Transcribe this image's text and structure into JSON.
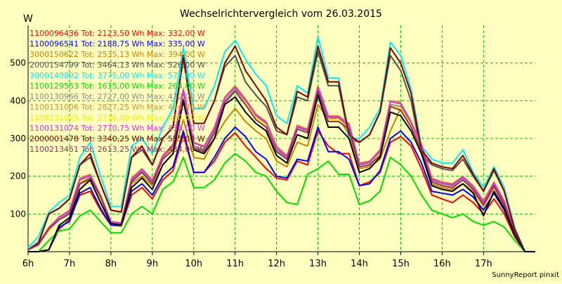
{
  "chart_data": {
    "type": "line",
    "title": "Wechselrichtervergleich vom 26.03.2015",
    "ylabel": "W",
    "xlabel": "",
    "footer": "SunnyReport pinxit",
    "ylim": [
      0,
      600
    ],
    "y_ticks": [
      100,
      200,
      300,
      400,
      500
    ],
    "xlim": [
      6.0,
      18.25
    ],
    "x_ticks": [
      {
        "x": 6,
        "label": "6h"
      },
      {
        "x": 7,
        "label": "7h"
      },
      {
        "x": 8,
        "label": "8h"
      },
      {
        "x": 9,
        "label": "9h"
      },
      {
        "x": 10,
        "label": "10h"
      },
      {
        "x": 11,
        "label": "11h"
      },
      {
        "x": 12,
        "label": "12h"
      },
      {
        "x": 13,
        "label": "13h"
      },
      {
        "x": 14,
        "label": "14h"
      },
      {
        "x": 15,
        "label": "15h"
      },
      {
        "x": 16,
        "label": "16h"
      },
      {
        "x": 17,
        "label": "17h"
      }
    ],
    "grid": true,
    "legend_position": "top-left",
    "x": [
      6.0,
      6.25,
      6.5,
      6.75,
      7.0,
      7.25,
      7.5,
      7.75,
      8.0,
      8.25,
      8.5,
      8.75,
      9.0,
      9.25,
      9.5,
      9.75,
      10.0,
      10.25,
      10.5,
      10.75,
      11.0,
      11.25,
      11.5,
      11.75,
      12.0,
      12.25,
      12.5,
      12.75,
      13.0,
      13.25,
      13.5,
      13.75,
      14.0,
      14.25,
      14.5,
      14.75,
      15.0,
      15.25,
      15.5,
      15.75,
      16.0,
      16.25,
      16.5,
      16.75,
      17.0,
      17.25,
      17.5,
      17.75,
      18.0,
      18.25
    ],
    "series": [
      {
        "name": "1100096436",
        "label": "1100096436 Tot: 2123,50 Wh Max: 332,00 W",
        "color": "#ff0000",
        "values": [
          0,
          0,
          5,
          60,
          85,
          150,
          160,
          110,
          70,
          68,
          150,
          170,
          140,
          190,
          215,
          310,
          210,
          210,
          240,
          290,
          315,
          280,
          250,
          220,
          195,
          190,
          240,
          230,
          320,
          280,
          260,
          260,
          175,
          185,
          210,
          290,
          305,
          280,
          220,
          150,
          140,
          130,
          150,
          130,
          100,
          140,
          100,
          40,
          0,
          0
        ]
      },
      {
        "name": "1100096541",
        "label": "1100096541 Tot: 2188,75 Wh Max: 335,00 W",
        "color": "#0000ff",
        "values": [
          0,
          0,
          5,
          65,
          80,
          155,
          170,
          115,
          70,
          70,
          160,
          180,
          150,
          200,
          225,
          320,
          210,
          210,
          250,
          300,
          330,
          305,
          265,
          245,
          200,
          195,
          245,
          240,
          330,
          265,
          265,
          245,
          175,
          180,
          215,
          300,
          320,
          290,
          235,
          160,
          155,
          150,
          165,
          145,
          110,
          155,
          110,
          45,
          0,
          0
        ]
      },
      {
        "name": "3000150622",
        "label": "3000150622 Tot: 2535,13 Wh Max: 394,00 W",
        "color": "#d08000",
        "values": [
          5,
          20,
          60,
          85,
          100,
          180,
          190,
          140,
          75,
          70,
          180,
          200,
          175,
          230,
          260,
          350,
          250,
          245,
          300,
          345,
          380,
          345,
          320,
          300,
          240,
          225,
          290,
          280,
          390,
          350,
          355,
          310,
          220,
          225,
          245,
          320,
          380,
          340,
          270,
          180,
          170,
          165,
          180,
          160,
          120,
          170,
          120,
          50,
          0,
          0
        ]
      },
      {
        "name": "2000154799",
        "label": "2000154799 Tot: 3464,13 Wh Max: 526,00 W",
        "color": "#505050",
        "values": [
          5,
          25,
          100,
          115,
          140,
          230,
          250,
          180,
          110,
          105,
          250,
          270,
          230,
          300,
          330,
          510,
          340,
          340,
          400,
          490,
          520,
          450,
          415,
          385,
          320,
          310,
          410,
          400,
          530,
          440,
          440,
          300,
          290,
          310,
          370,
          520,
          480,
          400,
          260,
          230,
          220,
          215,
          245,
          200,
          160,
          215,
          160,
          60,
          0,
          0
        ]
      },
      {
        "name": "3000149892",
        "label": "3000149892 Tot: 3775,00 Wh Max: 575,00 W",
        "color": "#00f0f0",
        "values": [
          10,
          40,
          105,
          130,
          150,
          250,
          290,
          200,
          120,
          120,
          280,
          300,
          260,
          330,
          380,
          540,
          380,
          380,
          440,
          530,
          560,
          510,
          470,
          440,
          360,
          340,
          440,
          420,
          570,
          460,
          460,
          300,
          300,
          330,
          380,
          555,
          520,
          430,
          280,
          245,
          235,
          235,
          270,
          210,
          170,
          225,
          170,
          65,
          0,
          0
        ]
      },
      {
        "name": "1100129553",
        "label": "1100129553 Tot: 1615,00 Wh Max: 264,00 W",
        "color": "#00e000",
        "values": [
          0,
          0,
          30,
          55,
          60,
          95,
          110,
          80,
          50,
          50,
          100,
          120,
          100,
          165,
          185,
          250,
          170,
          170,
          190,
          235,
          260,
          240,
          210,
          200,
          160,
          130,
          125,
          205,
          220,
          240,
          205,
          205,
          125,
          135,
          160,
          250,
          230,
          200,
          150,
          110,
          100,
          90,
          100,
          80,
          70,
          80,
          65,
          30,
          0,
          0
        ]
      },
      {
        "name": "1100130966",
        "label": "1100130966 Tot: 2727,00 Wh Max: 432,00 W",
        "color": "#888888",
        "values": [
          5,
          20,
          60,
          90,
          105,
          190,
          200,
          150,
          80,
          75,
          190,
          215,
          185,
          250,
          280,
          420,
          280,
          270,
          320,
          400,
          430,
          400,
          360,
          340,
          270,
          250,
          330,
          320,
          430,
          355,
          355,
          330,
          230,
          235,
          265,
          390,
          385,
          340,
          280,
          190,
          180,
          175,
          195,
          170,
          130,
          180,
          130,
          50,
          0,
          0
        ]
      },
      {
        "name": "1100131006",
        "label": "1100131006 Tot: 2827,25 Wh Max: 444,00 W",
        "color": "#d09030",
        "values": [
          5,
          20,
          65,
          90,
          110,
          195,
          205,
          150,
          80,
          75,
          195,
          220,
          190,
          255,
          285,
          430,
          290,
          280,
          330,
          410,
          440,
          405,
          365,
          345,
          280,
          255,
          335,
          325,
          440,
          360,
          360,
          340,
          235,
          240,
          270,
          400,
          395,
          345,
          285,
          195,
          185,
          180,
          200,
          175,
          135,
          185,
          135,
          55,
          0,
          0
        ]
      },
      {
        "name": "1100131025",
        "label": "1100131025 Tot: 2716,00 Wh Max: 430,00 W",
        "color": "#f0f000",
        "values": [
          5,
          20,
          55,
          85,
          100,
          185,
          195,
          140,
          75,
          70,
          185,
          210,
          180,
          245,
          275,
          410,
          275,
          265,
          315,
          395,
          425,
          395,
          355,
          335,
          265,
          245,
          325,
          315,
          425,
          350,
          350,
          325,
          225,
          230,
          260,
          385,
          380,
          335,
          275,
          185,
          175,
          170,
          190,
          165,
          125,
          175,
          125,
          50,
          0,
          0
        ]
      },
      {
        "name": "1100131074",
        "label": "1100131074 Tot: 2770,75 Wh Max: 436,00 W",
        "color": "#e030e0",
        "values": [
          5,
          22,
          62,
          92,
          108,
          192,
          202,
          148,
          80,
          76,
          192,
          218,
          188,
          252,
          282,
          428,
          288,
          278,
          328,
          408,
          436,
          402,
          362,
          342,
          276,
          252,
          332,
          322,
          436,
          357,
          357,
          336,
          232,
          238,
          268,
          398,
          392,
          342,
          282,
          192,
          182,
          178,
          198,
          172,
          132,
          182,
          132,
          52,
          0,
          0
        ]
      },
      {
        "name": "2000001478",
        "label": "2000001478 Tot: 3340,25 Wh Max: 555,00 W",
        "color": "#800000",
        "values": [
          5,
          22,
          100,
          115,
          140,
          230,
          260,
          180,
          110,
          105,
          250,
          280,
          230,
          300,
          330,
          520,
          340,
          340,
          400,
          500,
          545,
          480,
          440,
          400,
          330,
          310,
          425,
          410,
          545,
          450,
          450,
          310,
          290,
          310,
          370,
          540,
          500,
          420,
          270,
          235,
          225,
          220,
          255,
          205,
          160,
          220,
          160,
          60,
          0,
          0
        ]
      },
      {
        "name": "1100213451",
        "label": "1100213451 Tot: 2613,25 Wh Max: 434,00 W",
        "color": "#903060",
        "values": [
          5,
          18,
          60,
          85,
          100,
          180,
          195,
          145,
          75,
          72,
          185,
          210,
          180,
          245,
          270,
          405,
          275,
          265,
          315,
          395,
          425,
          390,
          350,
          330,
          265,
          245,
          325,
          315,
          425,
          345,
          345,
          325,
          225,
          230,
          255,
          385,
          375,
          330,
          270,
          185,
          175,
          170,
          190,
          165,
          125,
          175,
          125,
          50,
          0,
          0
        ]
      },
      {
        "name": "black",
        "label": "",
        "color": "#000000",
        "values": [
          0,
          0,
          5,
          70,
          90,
          165,
          190,
          130,
          75,
          70,
          170,
          195,
          165,
          230,
          260,
          400,
          270,
          260,
          300,
          390,
          410,
          370,
          340,
          320,
          255,
          235,
          310,
          300,
          415,
          330,
          330,
          300,
          210,
          220,
          250,
          370,
          360,
          320,
          260,
          175,
          165,
          160,
          180,
          155,
          95,
          160,
          115,
          45,
          0,
          0
        ]
      }
    ]
  }
}
